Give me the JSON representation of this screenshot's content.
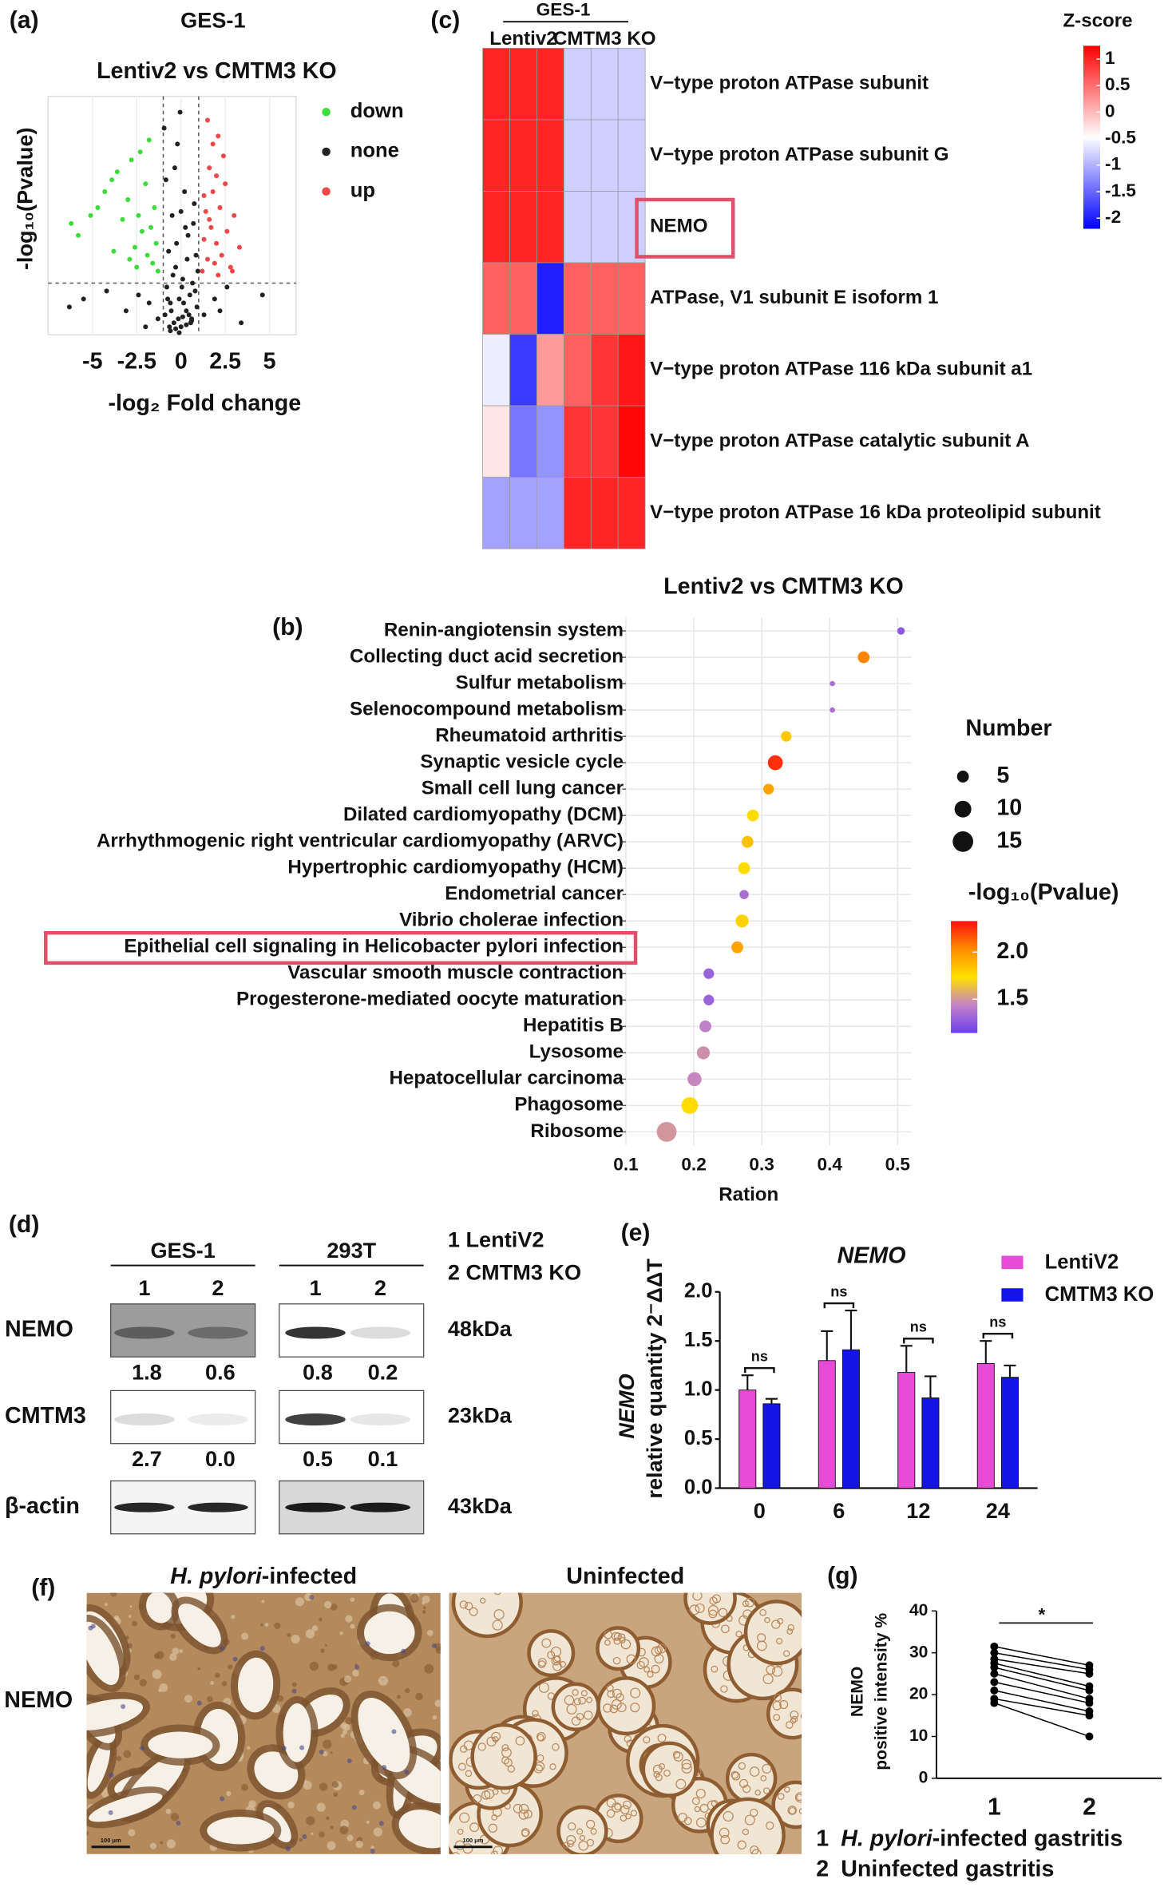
{
  "chart_data": [
    {
      "panel": "(a)",
      "type": "scatter",
      "title": "GES-1",
      "subtitle": "Lentiv2 vs CMTM3 KO",
      "xlabel": "-log₂ Fold change",
      "ylabel": "-log₁₀(Pvalue)",
      "xlim": [
        -7.5,
        6.5
      ],
      "ylim": [
        0,
        6
      ],
      "xticks": [
        -5,
        -2.5,
        0,
        2.5,
        5
      ],
      "grid": true,
      "thresholds": {
        "x": [
          -1,
          1
        ],
        "y": 1.3
      },
      "series": [
        {
          "name": "down",
          "color": "#3ddc3d",
          "x": [
            -6.2,
            -5.8,
            -5.1,
            -4.7,
            -4.3,
            -3.9,
            -3.6,
            -3.3,
            -3.0,
            -2.8,
            -2.6,
            -2.4,
            -2.2,
            -2.0,
            -1.9,
            -1.7,
            -1.6,
            -1.5,
            -1.4,
            -1.3,
            -2.9,
            -2.3,
            -1.8,
            -3.8,
            -2.5
          ],
          "values": [
            2.8,
            2.5,
            3.0,
            3.2,
            3.6,
            3.9,
            4.1,
            2.9,
            3.4,
            4.4,
            2.2,
            3.0,
            2.6,
            3.8,
            2.0,
            2.7,
            1.8,
            3.2,
            2.3,
            1.6,
            1.9,
            4.6,
            4.9,
            2.1,
            1.7
          ]
        },
        {
          "name": "none",
          "color": "#222222",
          "x": [
            -0.9,
            -0.8,
            -0.7,
            -0.6,
            -0.5,
            -0.4,
            -0.3,
            -0.2,
            -0.1,
            0,
            0.1,
            0.2,
            0.3,
            0.4,
            0.5,
            0.6,
            0.7,
            0.8,
            0.9,
            -0.85,
            -0.65,
            -0.45,
            -0.25,
            -0.05,
            0.15,
            0.35,
            0.55,
            0.75,
            0.95,
            -0.75,
            -0.35,
            0.05,
            0.45,
            0.85,
            -0.55,
            0.25,
            -0.15,
            0.65,
            -0.95,
            0.0,
            -5.5,
            -4.2,
            -3.1,
            -2.4,
            -1.8,
            -1.3,
            1.3,
            1.9,
            2.6,
            3.4,
            4.6,
            -6.3,
            -2.0,
            2.2,
            -0.3,
            0.3,
            -0.6,
            0.6,
            -0.1,
            0.1
          ],
          "values": [
            0.5,
            1.2,
            2.1,
            0.8,
            3.0,
            0.3,
            1.7,
            4.8,
            0.9,
            0.2,
            1.4,
            3.6,
            0.6,
            2.5,
            1.0,
            0.4,
            2.8,
            1.1,
            0.7,
            3.9,
            0.2,
            1.5,
            2.3,
            5.6,
            0.8,
            1.9,
            0.3,
            3.3,
            1.6,
            0.9,
            4.2,
            1.2,
            0.5,
            2.0,
            0.6,
            2.7,
            0.4,
            1.3,
            5.2,
            3.1,
            0.9,
            1.1,
            0.6,
            1.0,
            0.8,
            0.4,
            0.5,
            0.9,
            1.2,
            0.3,
            1.0,
            0.7,
            0.2,
            0.6,
            0.15,
            0.25,
            0.1,
            0.35,
            0.05,
            0.45
          ]
        },
        {
          "name": "up",
          "color": "#f04848",
          "x": [
            1.2,
            1.3,
            1.4,
            1.5,
            1.6,
            1.7,
            1.8,
            1.9,
            2.0,
            2.1,
            2.2,
            2.3,
            2.4,
            2.6,
            2.8,
            3.0,
            3.3,
            1.5,
            1.8,
            2.1,
            2.5,
            1.3,
            1.6,
            2.0,
            2.9
          ],
          "values": [
            1.6,
            2.4,
            3.1,
            1.9,
            4.2,
            2.7,
            3.6,
            1.8,
            2.3,
            5.0,
            3.2,
            2.0,
            4.5,
            2.6,
            1.7,
            3.0,
            2.2,
            5.4,
            4.8,
            1.5,
            3.8,
            3.5,
            2.9,
            4.0,
            1.6
          ]
        }
      ]
    },
    {
      "panel": "(c)",
      "type": "heatmap",
      "group_title": "GES-1",
      "column_groups": [
        "Lentiv2",
        "CMTM3 KO"
      ],
      "columns": [
        null,
        null,
        null,
        null,
        null,
        null
      ],
      "rows": [
        "V−type proton ATPase subunit",
        "V−type proton ATPase subunit G",
        "NEMO",
        "ATPase, V1 subunit E isoform 1",
        "V−type proton ATPase 116 kDa subunit a1",
        "V−type proton ATPase catalytic subunit A",
        "V−type proton ATPase 16 kDa proteolipid subunit"
      ],
      "values": [
        [
          1.0,
          1.0,
          1.0,
          -0.8,
          -0.8,
          -0.8
        ],
        [
          1.0,
          1.0,
          1.0,
          -0.8,
          -0.8,
          -0.8
        ],
        [
          1.0,
          1.0,
          1.0,
          -0.8,
          -0.8,
          -0.8
        ],
        [
          0.6,
          0.6,
          -2.0,
          0.6,
          0.6,
          0.6
        ],
        [
          -0.6,
          -1.8,
          0.2,
          0.6,
          0.9,
          1.1
        ],
        [
          -0.3,
          -1.4,
          -1.2,
          0.9,
          0.9,
          1.2
        ],
        [
          -1.1,
          -1.1,
          -1.1,
          1.0,
          1.0,
          1.0
        ]
      ],
      "highlight_row": 2,
      "color_title": "Z-score",
      "zlim": [
        -2.2,
        1.25
      ],
      "zticks": [
        1,
        0.5,
        0,
        -0.5,
        -1,
        -1.5,
        -2
      ],
      "colors": [
        "#0000ff",
        "#ffffff",
        "#ff0000"
      ]
    },
    {
      "panel": "(b)",
      "type": "dot",
      "title": "Lentiv2 vs CMTM3 KO",
      "xlabel": "Ration",
      "xlim": [
        0.1,
        0.52
      ],
      "xticks": [
        0.1,
        0.2,
        0.3,
        0.4,
        0.5
      ],
      "grid": true,
      "highlight_category": 12,
      "categories": [
        "Renin-angiotensin system",
        "Collecting duct acid secretion",
        "Sulfur metabolism",
        "Selenocompound metabolism",
        "Rheumatoid arthritis",
        "Synaptic vesicle cycle",
        "Small cell lung cancer",
        "Dilated cardiomyopathy (DCM)",
        "Arrhythmogenic right ventricular cardiomyopathy (ARVC)",
        "Hypertrophic cardiomyopathy (HCM)",
        "Endometrial cancer",
        "Vibrio cholerae infection",
        "Epithelial cell signaling in Helicobacter pylori infection",
        "Vascular smooth muscle contraction",
        "Progesterone-mediated oocyte maturation",
        "Hepatitis B",
        "Lysosome",
        "Hepatocellular carcinoma",
        "Phagosome",
        "Ribosome"
      ],
      "values": [
        0.505,
        0.45,
        0.404,
        0.404,
        0.336,
        0.32,
        0.31,
        0.287,
        0.279,
        0.274,
        0.274,
        0.271,
        0.264,
        0.222,
        0.222,
        0.217,
        0.214,
        0.201,
        0.194,
        0.16
      ],
      "size_values": [
        2,
        5,
        1,
        1,
        4,
        8,
        4,
        5,
        5,
        5,
        3,
        6,
        5,
        4,
        4,
        5,
        6,
        7,
        10,
        14
      ],
      "color_values": [
        1.25,
        2.05,
        1.35,
        1.35,
        1.82,
        2.25,
        1.95,
        1.75,
        1.85,
        1.75,
        1.35,
        1.78,
        1.95,
        1.3,
        1.3,
        1.42,
        1.48,
        1.45,
        1.75,
        1.5
      ],
      "size_legend": {
        "title": "Number",
        "values": [
          5,
          10,
          15
        ]
      },
      "color_legend": {
        "title": "-log₁₀(Pvalue)",
        "lim": [
          1.14,
          2.33
        ],
        "ticks": [
          {
            "value": 2,
            "label": "2.0"
          },
          1.5
        ],
        "colors": [
          "#6b3ef0",
          "#c583c6",
          "#ffe000",
          "#ff8c00",
          "#ff1010"
        ]
      }
    },
    {
      "panel": "(e)",
      "type": "bar",
      "title": "NEMO",
      "ylabel_italic": "NEMO",
      "ylabel": "relative quantity 2⁻ΔΔT",
      "categories": [
        "0",
        "6",
        "12",
        "24"
      ],
      "ylim": [
        0,
        2
      ],
      "yticks": [
        {
          "value": 0,
          "label": "0.0"
        },
        {
          "value": 0.5,
          "label": "0.5"
        },
        {
          "value": 1,
          "label": "1.0"
        },
        {
          "value": 1.5,
          "label": "1.5"
        },
        {
          "value": 2,
          "label": "2.0"
        }
      ],
      "series": [
        {
          "name": "LentiV2",
          "color": "#e64bd6",
          "values": [
            1.0,
            1.3,
            1.18,
            1.27
          ],
          "errors": [
            0.15,
            0.3,
            0.27,
            0.23
          ]
        },
        {
          "name": "CMTM3 KO",
          "color": "#1414e6",
          "values": [
            0.86,
            1.41,
            0.92,
            1.13
          ],
          "errors": [
            0.05,
            0.4,
            0.22,
            0.12
          ]
        }
      ],
      "significance": [
        "ns",
        "ns",
        "ns",
        "ns"
      ]
    },
    {
      "panel": "(g)",
      "type": "paired",
      "ylabel": [
        "NEMO",
        "positive intensity %"
      ],
      "categories": [
        "1",
        "2"
      ],
      "color": "#000000",
      "ylim": [
        0,
        40
      ],
      "yticks": [
        0,
        10,
        20,
        30,
        40
      ],
      "significance": "*",
      "series": [
        {
          "values": [
            31.5,
            27
          ]
        },
        {
          "values": [
            30,
            26
          ]
        },
        {
          "values": [
            28.5,
            25
          ]
        },
        {
          "values": [
            27.5,
            22
          ]
        },
        {
          "values": [
            26.5,
            21
          ]
        },
        {
          "values": [
            25,
            19
          ]
        },
        {
          "values": [
            23,
            18
          ]
        },
        {
          "values": [
            21,
            16
          ]
        },
        {
          "values": [
            19,
            15
          ]
        },
        {
          "values": [
            18,
            10
          ]
        }
      ],
      "legend": [
        {
          "number": "1",
          "italic": "H. pylori",
          "text": "-infected gastritis"
        },
        {
          "number": "2",
          "text": "Uninfected gastritis"
        }
      ]
    }
  ],
  "western_blot": {
    "panel": "(d)",
    "groups": [
      "GES-1",
      "293T"
    ],
    "lanes": [
      "1",
      "2"
    ],
    "lane_legend": [
      "1 LentiV2",
      "2 CMTM3 KO"
    ],
    "rows": [
      {
        "label": "NEMO",
        "size": "48kDa",
        "quantification": [
          [
            "1.8",
            "0.6"
          ],
          [
            "0.8",
            "0.2"
          ]
        ]
      },
      {
        "label": "CMTM3",
        "size": "23kDa",
        "quantification": [
          [
            "2.7",
            "0.0"
          ],
          [
            "0.5",
            "0.1"
          ]
        ]
      },
      {
        "label": "β-actin",
        "size": "43kDa"
      }
    ]
  },
  "ihc": {
    "panel": "(f)",
    "row_label": "NEMO",
    "images": [
      {
        "title_italic": "H. pylori",
        "title": "-infected",
        "scale_bar": "100 μm"
      },
      {
        "title": "Uninfected",
        "scale_bar": "100 μm"
      }
    ]
  }
}
